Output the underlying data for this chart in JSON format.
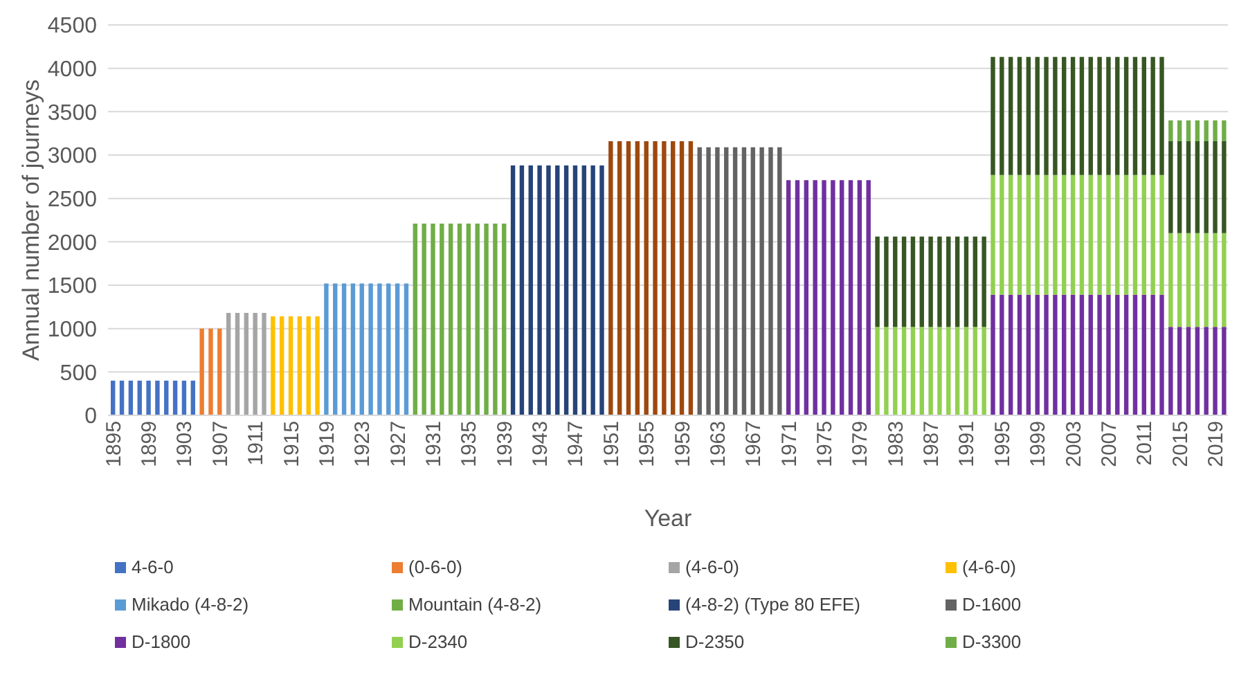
{
  "chart_data": {
    "type": "bar",
    "stacked": true,
    "xlabel": "Year",
    "ylabel": "Annual number of journeys",
    "categories": [
      "1895",
      null,
      null,
      null,
      "1899",
      null,
      null,
      null,
      "1903",
      null,
      null,
      null,
      "1907",
      null,
      null,
      null,
      "1911",
      null,
      null,
      null,
      "1915",
      null,
      null,
      null,
      "1919",
      null,
      null,
      null,
      "1923",
      null,
      null,
      null,
      "1927",
      null,
      null,
      null,
      "1931",
      null,
      null,
      null,
      "1935",
      null,
      null,
      null,
      "1939",
      null,
      null,
      null,
      "1943",
      null,
      null,
      null,
      "1947",
      null,
      null,
      null,
      "1951",
      null,
      null,
      null,
      "1955",
      null,
      null,
      null,
      "1959",
      null,
      null,
      null,
      "1963",
      null,
      null,
      null,
      "1967",
      null,
      null,
      null,
      "1971",
      null,
      null,
      null,
      "1975",
      null,
      null,
      null,
      "1979",
      null,
      null,
      null,
      "1983",
      null,
      null,
      null,
      "1987",
      null,
      null,
      null,
      "1991",
      null,
      null,
      null,
      "1995",
      null,
      null,
      null,
      "1999",
      null,
      null,
      null,
      "2003",
      null,
      null,
      null,
      "2007",
      null,
      null,
      null,
      "2011",
      null,
      null,
      null,
      "2015",
      null,
      null,
      null,
      "2019",
      null
    ],
    "ylim": [
      0,
      4500
    ],
    "yticks": [
      0,
      500,
      1000,
      1500,
      2000,
      2500,
      3000,
      3500,
      4000,
      4500
    ],
    "grid": "y",
    "legend": "bottom",
    "series": [
      {
        "name": "4-6-0",
        "color": "#4472c4",
        "values": [
          400,
          400,
          400,
          400,
          400,
          400,
          400,
          400,
          400,
          400,
          null,
          null,
          null,
          null,
          null,
          null,
          null,
          null,
          null,
          null,
          null,
          null,
          null,
          null,
          null,
          null,
          null,
          null,
          null,
          null,
          null,
          null,
          null,
          null,
          null,
          null,
          null,
          null,
          null,
          null,
          null,
          null,
          null,
          null,
          null,
          null,
          null,
          null,
          null,
          null,
          null,
          null,
          null,
          null,
          null,
          null,
          null,
          null,
          null,
          null,
          null,
          null,
          null,
          null,
          null,
          null,
          null,
          null,
          null,
          null,
          null,
          null,
          null,
          null,
          null,
          null,
          null,
          null,
          null,
          null,
          null,
          null,
          null,
          null,
          null,
          null,
          null,
          null,
          null,
          null,
          null,
          null,
          null,
          null,
          null,
          null,
          null,
          null,
          null,
          null,
          null,
          null,
          null,
          null,
          null,
          null,
          null,
          null,
          null,
          null,
          null,
          null,
          null,
          null,
          null,
          null,
          null,
          null,
          null,
          null,
          null,
          null,
          null,
          null,
          null,
          null
        ]
      },
      {
        "name": "(0-6-0)",
        "color": "#ed7d31",
        "values": [
          null,
          null,
          null,
          null,
          null,
          null,
          null,
          null,
          null,
          null,
          1000,
          1000,
          1000,
          null,
          null,
          null,
          null,
          null,
          null,
          null,
          null,
          null,
          null,
          null,
          null,
          null,
          null,
          null,
          null,
          null,
          null,
          null,
          null,
          null,
          null,
          null,
          null,
          null,
          null,
          null,
          null,
          null,
          null,
          null,
          null,
          null,
          null,
          null,
          null,
          null,
          null,
          null,
          null,
          null,
          null,
          null,
          null,
          null,
          null,
          null,
          null,
          null,
          null,
          null,
          null,
          null,
          null,
          null,
          null,
          null,
          null,
          null,
          null,
          null,
          null,
          null,
          null,
          null,
          null,
          null,
          null,
          null,
          null,
          null,
          null,
          null,
          null,
          null,
          null,
          null,
          null,
          null,
          null,
          null,
          null,
          null,
          null,
          null,
          null,
          null,
          null,
          null,
          null,
          null,
          null,
          null,
          null,
          null,
          null,
          null,
          null,
          null,
          null,
          null,
          null,
          null,
          null,
          null,
          null,
          null,
          null,
          null,
          null,
          null,
          null,
          null
        ]
      },
      {
        "name": "(4-6-0)",
        "color": "#a5a5a5",
        "values": [
          null,
          null,
          null,
          null,
          null,
          null,
          null,
          null,
          null,
          null,
          null,
          null,
          null,
          1180,
          1180,
          1180,
          1180,
          1180,
          null,
          null,
          null,
          null,
          null,
          null,
          null,
          null,
          null,
          null,
          null,
          null,
          null,
          null,
          null,
          null,
          null,
          null,
          null,
          null,
          null,
          null,
          null,
          null,
          null,
          null,
          null,
          null,
          null,
          null,
          null,
          null,
          null,
          null,
          null,
          null,
          null,
          null,
          null,
          null,
          null,
          null,
          null,
          null,
          null,
          null,
          null,
          null,
          null,
          null,
          null,
          null,
          null,
          null,
          null,
          null,
          null,
          null,
          null,
          null,
          null,
          null,
          null,
          null,
          null,
          null,
          null,
          null,
          null,
          null,
          null,
          null,
          null,
          null,
          null,
          null,
          null,
          null,
          null,
          null,
          null,
          null,
          null,
          null,
          null,
          null,
          null,
          null,
          null,
          null,
          null,
          null,
          null,
          null,
          null,
          null,
          null,
          null,
          null,
          null,
          null,
          null,
          null,
          null,
          null,
          null,
          null,
          null
        ]
      },
      {
        "name": "(4-6-0)",
        "color": "#ffc000",
        "values": [
          null,
          null,
          null,
          null,
          null,
          null,
          null,
          null,
          null,
          null,
          null,
          null,
          null,
          null,
          null,
          null,
          null,
          null,
          1140,
          1140,
          1140,
          1140,
          1140,
          1140,
          null,
          null,
          null,
          null,
          null,
          null,
          null,
          null,
          null,
          null,
          null,
          null,
          null,
          null,
          null,
          null,
          null,
          null,
          null,
          null,
          null,
          null,
          null,
          null,
          null,
          null,
          null,
          null,
          null,
          null,
          null,
          null,
          null,
          null,
          null,
          null,
          null,
          null,
          null,
          null,
          null,
          null,
          null,
          null,
          null,
          null,
          null,
          null,
          null,
          null,
          null,
          null,
          null,
          null,
          null,
          null,
          null,
          null,
          null,
          null,
          null,
          null,
          null,
          null,
          null,
          null,
          null,
          null,
          null,
          null,
          null,
          null,
          null,
          null,
          null,
          null,
          null,
          null,
          null,
          null,
          null,
          null,
          null,
          null,
          null,
          null,
          null,
          null,
          null,
          null,
          null,
          null,
          null,
          null,
          null,
          null,
          null,
          null,
          null,
          null,
          null,
          null
        ]
      },
      {
        "name": "Mikado (4-8-2)",
        "color": "#5b9bd5",
        "values": [
          null,
          null,
          null,
          null,
          null,
          null,
          null,
          null,
          null,
          null,
          null,
          null,
          null,
          null,
          null,
          null,
          null,
          null,
          null,
          null,
          null,
          null,
          null,
          null,
          1520,
          1520,
          1520,
          1520,
          1520,
          1520,
          1520,
          1520,
          1520,
          1520,
          null,
          null,
          null,
          null,
          null,
          null,
          null,
          null,
          null,
          null,
          null,
          null,
          null,
          null,
          null,
          null,
          null,
          null,
          null,
          null,
          null,
          null,
          null,
          null,
          null,
          null,
          null,
          null,
          null,
          null,
          null,
          null,
          null,
          null,
          null,
          null,
          null,
          null,
          null,
          null,
          null,
          null,
          null,
          null,
          null,
          null,
          null,
          null,
          null,
          null,
          null,
          null,
          null,
          null,
          null,
          null,
          null,
          null,
          null,
          null,
          null,
          null,
          null,
          null,
          null,
          null,
          null,
          null,
          null,
          null,
          null,
          null,
          null,
          null,
          null,
          null,
          null,
          null,
          null,
          null,
          null,
          null,
          null,
          null,
          null,
          null,
          null,
          null,
          null,
          null,
          null,
          null
        ]
      },
      {
        "name": "Mountain (4-8-2)",
        "color": "#70ad47",
        "values": [
          null,
          null,
          null,
          null,
          null,
          null,
          null,
          null,
          null,
          null,
          null,
          null,
          null,
          null,
          null,
          null,
          null,
          null,
          null,
          null,
          null,
          null,
          null,
          null,
          null,
          null,
          null,
          null,
          null,
          null,
          null,
          null,
          null,
          null,
          2210,
          2210,
          2210,
          2210,
          2210,
          2210,
          2210,
          2210,
          2210,
          2210,
          2210,
          null,
          null,
          null,
          null,
          null,
          null,
          null,
          null,
          null,
          null,
          null,
          null,
          null,
          null,
          null,
          null,
          null,
          null,
          null,
          null,
          null,
          null,
          null,
          null,
          null,
          null,
          null,
          null,
          null,
          null,
          null,
          null,
          null,
          null,
          null,
          null,
          null,
          null,
          null,
          null,
          null,
          null,
          null,
          null,
          null,
          null,
          null,
          null,
          null,
          null,
          null,
          null,
          null,
          null,
          null,
          null,
          null,
          null,
          null,
          null,
          null,
          null,
          null,
          null,
          null,
          null,
          null,
          null,
          null,
          null,
          null,
          null,
          null,
          null,
          null,
          null,
          null,
          null,
          null,
          null,
          null
        ]
      },
      {
        "name": "(4-8-2) (Type 80 EFE)",
        "color": "#264478",
        "values": [
          null,
          null,
          null,
          null,
          null,
          null,
          null,
          null,
          null,
          null,
          null,
          null,
          null,
          null,
          null,
          null,
          null,
          null,
          null,
          null,
          null,
          null,
          null,
          null,
          null,
          null,
          null,
          null,
          null,
          null,
          null,
          null,
          null,
          null,
          null,
          null,
          null,
          null,
          null,
          null,
          null,
          null,
          null,
          null,
          null,
          2880,
          2880,
          2880,
          2880,
          2880,
          2880,
          2880,
          2880,
          2880,
          2880,
          2880,
          null,
          null,
          null,
          null,
          null,
          null,
          null,
          null,
          null,
          null,
          null,
          null,
          null,
          null,
          null,
          null,
          null,
          null,
          null,
          null,
          null,
          null,
          null,
          null,
          null,
          null,
          null,
          null,
          null,
          null,
          null,
          null,
          null,
          null,
          null,
          null,
          null,
          null,
          null,
          null,
          null,
          null,
          null,
          null,
          null,
          null,
          null,
          null,
          null,
          null,
          null,
          null,
          null,
          null,
          null,
          null,
          null,
          null,
          null,
          null,
          null,
          null,
          null,
          null,
          null,
          null,
          null,
          null,
          null,
          null
        ]
      },
      {
        "color": "#9e480e",
        "values": [
          null,
          null,
          null,
          null,
          null,
          null,
          null,
          null,
          null,
          null,
          null,
          null,
          null,
          null,
          null,
          null,
          null,
          null,
          null,
          null,
          null,
          null,
          null,
          null,
          null,
          null,
          null,
          null,
          null,
          null,
          null,
          null,
          null,
          null,
          null,
          null,
          null,
          null,
          null,
          null,
          null,
          null,
          null,
          null,
          null,
          null,
          null,
          null,
          null,
          null,
          null,
          null,
          null,
          null,
          null,
          null,
          3160,
          3160,
          3160,
          3160,
          3160,
          3160,
          3160,
          3160,
          3160,
          3160,
          null,
          null,
          null,
          null,
          null,
          null,
          null,
          null,
          null,
          null,
          null,
          null,
          null,
          null,
          null,
          null,
          null,
          null,
          null,
          null,
          null,
          null,
          null,
          null,
          null,
          null,
          null,
          null,
          null,
          null,
          null,
          null,
          null,
          null,
          null,
          null,
          null,
          null,
          null,
          null,
          null,
          null,
          null,
          null,
          null,
          null,
          null,
          null,
          null,
          null,
          null,
          null,
          null,
          null,
          null,
          null,
          null,
          null,
          null,
          null
        ]
      },
      {
        "name": "D-1600",
        "color": "#636363",
        "values": [
          null,
          null,
          null,
          null,
          null,
          null,
          null,
          null,
          null,
          null,
          null,
          null,
          null,
          null,
          null,
          null,
          null,
          null,
          null,
          null,
          null,
          null,
          null,
          null,
          null,
          null,
          null,
          null,
          null,
          null,
          null,
          null,
          null,
          null,
          null,
          null,
          null,
          null,
          null,
          null,
          null,
          null,
          null,
          null,
          null,
          null,
          null,
          null,
          null,
          null,
          null,
          null,
          null,
          null,
          null,
          null,
          null,
          null,
          null,
          null,
          null,
          null,
          null,
          null,
          null,
          null,
          3090,
          3090,
          3090,
          3090,
          3090,
          3090,
          3090,
          3090,
          3090,
          3090,
          null,
          null,
          null,
          null,
          null,
          null,
          null,
          null,
          null,
          null,
          null,
          null,
          null,
          null,
          null,
          null,
          null,
          null,
          null,
          null,
          null,
          null,
          null,
          null,
          null,
          null,
          null,
          null,
          null,
          null,
          null,
          null,
          null,
          null,
          null,
          null,
          null,
          null,
          null,
          null,
          null,
          null,
          null,
          null,
          null,
          null,
          null,
          null,
          null,
          null
        ]
      },
      {
        "name": "D-1800",
        "color": "#7030a0",
        "values": [
          null,
          null,
          null,
          null,
          null,
          null,
          null,
          null,
          null,
          null,
          null,
          null,
          null,
          null,
          null,
          null,
          null,
          null,
          null,
          null,
          null,
          null,
          null,
          null,
          null,
          null,
          null,
          null,
          null,
          null,
          null,
          null,
          null,
          null,
          null,
          null,
          null,
          null,
          null,
          null,
          null,
          null,
          null,
          null,
          null,
          null,
          null,
          null,
          null,
          null,
          null,
          null,
          null,
          null,
          null,
          null,
          null,
          null,
          null,
          null,
          null,
          null,
          null,
          null,
          null,
          null,
          null,
          null,
          null,
          null,
          null,
          null,
          null,
          null,
          null,
          null,
          2710,
          2710,
          2710,
          2710,
          2710,
          2710,
          2710,
          2710,
          2710,
          2710,
          null,
          null,
          null,
          null,
          null,
          null,
          null,
          null,
          null,
          null,
          null,
          null,
          null,
          1390,
          1390,
          1390,
          1390,
          1390,
          1390,
          1390,
          1390,
          1390,
          1390,
          1390,
          1390,
          1390,
          1390,
          1390,
          1390,
          1390,
          1390,
          1390,
          1390,
          1020,
          1020,
          1020,
          1020,
          1020,
          1020,
          1020
        ]
      },
      {
        "name": "D-2340",
        "color": "#92d050",
        "values": [
          null,
          null,
          null,
          null,
          null,
          null,
          null,
          null,
          null,
          null,
          null,
          null,
          null,
          null,
          null,
          null,
          null,
          null,
          null,
          null,
          null,
          null,
          null,
          null,
          null,
          null,
          null,
          null,
          null,
          null,
          null,
          null,
          null,
          null,
          null,
          null,
          null,
          null,
          null,
          null,
          null,
          null,
          null,
          null,
          null,
          null,
          null,
          null,
          null,
          null,
          null,
          null,
          null,
          null,
          null,
          null,
          null,
          null,
          null,
          null,
          null,
          null,
          null,
          null,
          null,
          null,
          null,
          null,
          null,
          null,
          null,
          null,
          null,
          null,
          null,
          null,
          null,
          null,
          null,
          null,
          null,
          null,
          null,
          null,
          null,
          null,
          1020,
          1020,
          1020,
          1020,
          1020,
          1020,
          1020,
          1020,
          1020,
          1020,
          1020,
          1020,
          1020,
          1380,
          1380,
          1380,
          1380,
          1380,
          1380,
          1380,
          1380,
          1380,
          1380,
          1380,
          1380,
          1380,
          1380,
          1380,
          1380,
          1380,
          1380,
          1380,
          1380,
          1080,
          1080,
          1080,
          1080,
          1080,
          1080,
          1080
        ]
      },
      {
        "name": "D-2350",
        "color": "#375623",
        "values": [
          null,
          null,
          null,
          null,
          null,
          null,
          null,
          null,
          null,
          null,
          null,
          null,
          null,
          null,
          null,
          null,
          null,
          null,
          null,
          null,
          null,
          null,
          null,
          null,
          null,
          null,
          null,
          null,
          null,
          null,
          null,
          null,
          null,
          null,
          null,
          null,
          null,
          null,
          null,
          null,
          null,
          null,
          null,
          null,
          null,
          null,
          null,
          null,
          null,
          null,
          null,
          null,
          null,
          null,
          null,
          null,
          null,
          null,
          null,
          null,
          null,
          null,
          null,
          null,
          null,
          null,
          null,
          null,
          null,
          null,
          null,
          null,
          null,
          null,
          null,
          null,
          null,
          null,
          null,
          null,
          null,
          null,
          null,
          null,
          null,
          null,
          1040,
          1040,
          1040,
          1040,
          1040,
          1040,
          1040,
          1040,
          1040,
          1040,
          1040,
          1040,
          1040,
          1360,
          1360,
          1360,
          1360,
          1360,
          1360,
          1360,
          1360,
          1360,
          1360,
          1360,
          1360,
          1360,
          1360,
          1360,
          1360,
          1360,
          1360,
          1360,
          1360,
          1060,
          1060,
          1060,
          1060,
          1060,
          1060,
          1060
        ]
      },
      {
        "name": "D-3300",
        "color": "#70ad47",
        "values": [
          null,
          null,
          null,
          null,
          null,
          null,
          null,
          null,
          null,
          null,
          null,
          null,
          null,
          null,
          null,
          null,
          null,
          null,
          null,
          null,
          null,
          null,
          null,
          null,
          null,
          null,
          null,
          null,
          null,
          null,
          null,
          null,
          null,
          null,
          null,
          null,
          null,
          null,
          null,
          null,
          null,
          null,
          null,
          null,
          null,
          null,
          null,
          null,
          null,
          null,
          null,
          null,
          null,
          null,
          null,
          null,
          null,
          null,
          null,
          null,
          null,
          null,
          null,
          null,
          null,
          null,
          null,
          null,
          null,
          null,
          null,
          null,
          null,
          null,
          null,
          null,
          null,
          null,
          null,
          null,
          null,
          null,
          null,
          null,
          null,
          null,
          null,
          null,
          null,
          null,
          null,
          null,
          null,
          null,
          null,
          null,
          null,
          null,
          null,
          null,
          null,
          null,
          null,
          null,
          null,
          null,
          null,
          null,
          null,
          null,
          null,
          null,
          null,
          null,
          null,
          null,
          null,
          null,
          null,
          240,
          240,
          240,
          240,
          240,
          240,
          240
        ]
      }
    ]
  }
}
